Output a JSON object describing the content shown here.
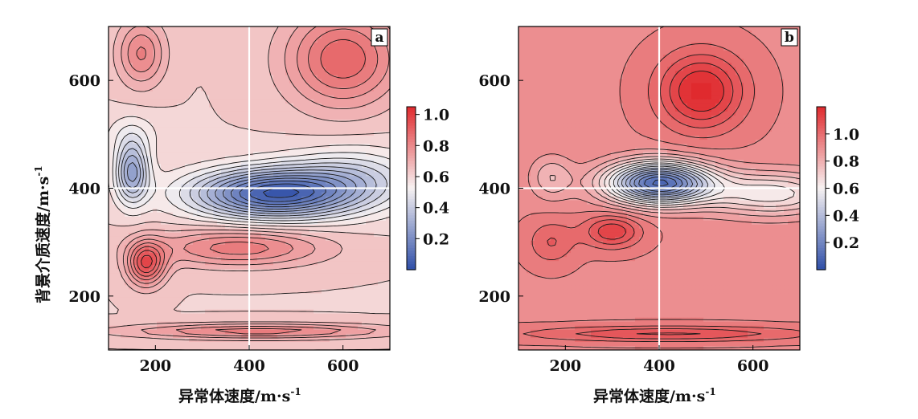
{
  "chart_data": [
    {
      "type": "heatmap",
      "panel_label": "a",
      "xlabel": "异常体速度/m·s",
      "xlabel_sup": "-1",
      "ylabel": "背景介质速度/m·s",
      "ylabel_sup": "-1",
      "xlim": [
        100,
        700
      ],
      "ylim": [
        100,
        700
      ],
      "xticks": [
        200,
        400,
        600
      ],
      "yticks": [
        200,
        400,
        600
      ],
      "crosshair": {
        "x": 400,
        "y": 400
      },
      "colorbar": {
        "min": 0.0,
        "max": 1.05,
        "ticks": [
          0.2,
          0.4,
          0.6,
          0.8,
          1.0
        ],
        "tick_labels": [
          "0.2",
          "0.4",
          "0.6",
          "0.8",
          "1.0"
        ],
        "contour_levels": 22
      },
      "field_components": {
        "base": 0.62,
        "bumps": [
          {
            "x": 450,
            "y": 390,
            "amp": -0.56,
            "sx": 170,
            "sy": 45
          },
          {
            "x": 620,
            "y": 420,
            "amp": -0.18,
            "sx": 140,
            "sy": 55
          },
          {
            "x": 150,
            "y": 430,
            "amp": -0.35,
            "sx": 35,
            "sy": 55
          },
          {
            "x": 180,
            "y": 260,
            "amp": 0.33,
            "sx": 40,
            "sy": 40
          },
          {
            "x": 380,
            "y": 290,
            "amp": 0.22,
            "sx": 180,
            "sy": 35
          },
          {
            "x": 600,
            "y": 640,
            "amp": 0.28,
            "sx": 120,
            "sy": 90
          },
          {
            "x": 170,
            "y": 650,
            "amp": 0.2,
            "sx": 50,
            "sy": 60
          },
          {
            "x": 420,
            "y": 135,
            "amp": 0.22,
            "sx": 280,
            "sy": 14
          },
          {
            "x": 150,
            "y": 500,
            "amp": -0.08,
            "sx": 60,
            "sy": 40
          }
        ]
      },
      "colors": {
        "low": "#2f4fa8",
        "mid": "#f7f2f2",
        "high": "#e02a2e"
      }
    },
    {
      "type": "heatmap",
      "panel_label": "b",
      "xlabel": "异常体速度/m·s",
      "xlabel_sup": "-1",
      "ylabel": "",
      "ylabel_sup": "",
      "xlim": [
        100,
        700
      ],
      "ylim": [
        100,
        700
      ],
      "xticks": [
        200,
        400,
        600
      ],
      "yticks": [
        200,
        400,
        600
      ],
      "crosshair": {
        "x": 400,
        "y": 400
      },
      "colorbar": {
        "min": 0.0,
        "max": 1.2,
        "ticks": [
          0.2,
          0.4,
          0.6,
          0.8,
          1.0
        ],
        "tick_labels": [
          "0.2",
          "0.4",
          "0.6",
          "0.8",
          "1.0"
        ],
        "contour_levels": 22
      },
      "field_components": {
        "base": 0.92,
        "bumps": [
          {
            "x": 400,
            "y": 410,
            "amp": -0.82,
            "sx": 110,
            "sy": 38
          },
          {
            "x": 640,
            "y": 390,
            "amp": -0.3,
            "sx": 140,
            "sy": 40
          },
          {
            "x": 490,
            "y": 580,
            "amp": 0.3,
            "sx": 90,
            "sy": 70
          },
          {
            "x": 300,
            "y": 320,
            "amp": 0.22,
            "sx": 60,
            "sy": 30
          },
          {
            "x": 170,
            "y": 300,
            "amp": 0.12,
            "sx": 50,
            "sy": 40
          },
          {
            "x": 420,
            "y": 130,
            "amp": 0.18,
            "sx": 300,
            "sy": 14
          },
          {
            "x": 170,
            "y": 420,
            "amp": -0.15,
            "sx": 45,
            "sy": 40
          }
        ]
      },
      "colors": {
        "low": "#2f4fa8",
        "mid": "#f7f2f2",
        "high": "#e02a2e"
      }
    }
  ]
}
